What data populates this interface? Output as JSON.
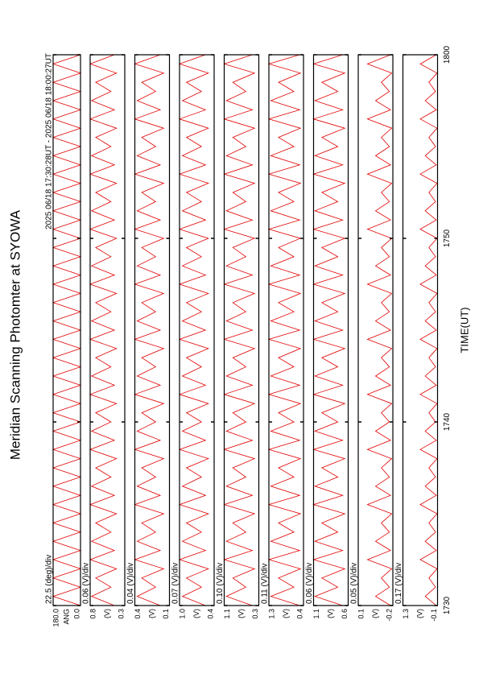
{
  "title": "Meridian Scanning Photomter at SYOWA",
  "subtitle": "2025 06/18 17:30:28UT - 2025 06/18 18:00:27UT",
  "chart_data": {
    "type": "line",
    "xlabel": "TIME(UT)",
    "xlim": [
      0,
      30
    ],
    "xticks": [
      {
        "value": 0,
        "label": "1730"
      },
      {
        "value": 10,
        "label": "1740"
      },
      {
        "value": 20,
        "label": "1750"
      },
      {
        "value": 30,
        "label": "1800"
      }
    ],
    "x": [
      0,
      0.5,
      1,
      1.5,
      2,
      2.5,
      3,
      3.5,
      4,
      4.5,
      5,
      5.5,
      6,
      6.5,
      7,
      7.5,
      8,
      8.5,
      9,
      9.5,
      10,
      10.5,
      11,
      11.5,
      12,
      12.5,
      13,
      13.5,
      14,
      14.5,
      15,
      15.5,
      16,
      16.5,
      17,
      17.5,
      18,
      18.5,
      19,
      19.5,
      20,
      20.5,
      21,
      21.5,
      22,
      22.5,
      23,
      23.5,
      24,
      24.5,
      25,
      25.5,
      26,
      26.5,
      27,
      27.5,
      28,
      28.5,
      29,
      29.5,
      30
    ],
    "series": [
      {
        "ylabel": "ANG",
        "scale_label": "22.5 (deg)/div",
        "color": "#e00000",
        "ylim": [
          0.0,
          180.0
        ],
        "yticks": [
          {
            "value": 180,
            "label": "180.0"
          },
          {
            "value": 0,
            "label": "0.0"
          }
        ],
        "values": [
          0,
          180,
          0,
          180,
          0,
          180,
          0,
          180,
          0,
          180,
          0,
          180,
          0,
          180,
          0,
          180,
          0,
          180,
          0,
          180,
          0,
          180,
          0,
          180,
          0,
          180,
          0,
          180,
          0,
          180,
          0,
          180,
          0,
          180,
          0,
          180,
          0,
          180,
          0,
          180,
          0,
          180,
          0,
          180,
          0,
          180,
          0,
          180,
          0,
          180,
          0,
          180,
          0,
          180,
          0,
          180,
          0,
          180,
          0,
          180,
          0
        ]
      },
      {
        "ylabel": "(V)",
        "scale_label": "0.06 (V)/div",
        "color": "#e00000",
        "ylim": [
          0.3,
          0.8
        ],
        "yticks": [
          0.8,
          0.3
        ],
        "values": [
          0.45,
          0.78,
          0.5,
          0.72,
          0.42,
          0.8,
          0.45,
          0.78,
          0.5,
          0.72,
          0.42,
          0.8,
          0.45,
          0.78,
          0.5,
          0.72,
          0.42,
          0.8,
          0.45,
          0.78,
          0.5,
          0.72,
          0.42,
          0.8,
          0.45,
          0.78,
          0.5,
          0.72,
          0.42,
          0.8,
          0.45,
          0.78,
          0.5,
          0.72,
          0.42,
          0.8,
          0.45,
          0.78,
          0.5,
          0.72,
          0.42,
          0.8,
          0.45,
          0.78,
          0.5,
          0.72,
          0.42,
          0.8,
          0.45,
          0.78,
          0.5,
          0.72,
          0.42,
          0.8,
          0.45,
          0.78,
          0.5,
          0.72,
          0.42,
          0.8,
          0.45
        ]
      },
      {
        "ylabel": "(V)",
        "scale_label": "0.04 (V)/div",
        "color": "#e00000",
        "ylim": [
          0.1,
          0.4
        ],
        "yticks": [
          0.4,
          0.1
        ],
        "values": [
          0.18,
          0.38,
          0.22,
          0.34,
          0.15,
          0.4,
          0.18,
          0.38,
          0.22,
          0.34,
          0.15,
          0.4,
          0.18,
          0.38,
          0.22,
          0.34,
          0.15,
          0.4,
          0.18,
          0.38,
          0.22,
          0.34,
          0.15,
          0.4,
          0.18,
          0.38,
          0.22,
          0.34,
          0.15,
          0.4,
          0.18,
          0.38,
          0.22,
          0.34,
          0.15,
          0.4,
          0.18,
          0.38,
          0.22,
          0.34,
          0.15,
          0.4,
          0.18,
          0.38,
          0.22,
          0.34,
          0.15,
          0.4,
          0.18,
          0.38,
          0.22,
          0.34,
          0.15,
          0.4,
          0.18,
          0.38,
          0.22,
          0.34,
          0.15,
          0.4,
          0.18
        ]
      },
      {
        "ylabel": "(V)",
        "scale_label": "0.07 (V)/div",
        "color": "#e00000",
        "ylim": [
          0.4,
          1.0
        ],
        "yticks": [
          {
            "value": 1,
            "label": "1.0"
          },
          0.4
        ],
        "values": [
          0.55,
          0.95,
          0.62,
          0.88,
          0.5,
          1.0,
          0.55,
          0.95,
          0.62,
          0.88,
          0.5,
          1.0,
          0.55,
          0.95,
          0.62,
          0.88,
          0.5,
          1.0,
          0.55,
          0.95,
          0.62,
          0.88,
          0.5,
          1.0,
          0.55,
          0.95,
          0.62,
          0.88,
          0.5,
          1.0,
          0.55,
          0.95,
          0.62,
          0.88,
          0.5,
          1.0,
          0.55,
          0.95,
          0.62,
          0.88,
          0.5,
          1.0,
          0.55,
          0.95,
          0.62,
          0.88,
          0.5,
          1.0,
          0.55,
          0.95,
          0.62,
          0.88,
          0.5,
          1.0,
          0.55,
          0.95,
          0.62,
          0.88,
          0.5,
          1.0,
          0.55
        ]
      },
      {
        "ylabel": "(V)",
        "scale_label": "0.10 (V)/div",
        "color": "#e00000",
        "ylim": [
          0.3,
          1.1
        ],
        "yticks": [
          1.1,
          0.3
        ],
        "values": [
          0.45,
          1.05,
          0.6,
          0.9,
          0.4,
          1.1,
          0.45,
          1.05,
          0.6,
          0.9,
          0.4,
          1.1,
          0.45,
          1.05,
          0.6,
          0.9,
          0.4,
          1.1,
          0.45,
          1.05,
          0.6,
          0.9,
          0.4,
          1.1,
          0.45,
          1.05,
          0.6,
          0.9,
          0.4,
          1.1,
          0.45,
          1.05,
          0.6,
          0.9,
          0.4,
          1.1,
          0.45,
          1.05,
          0.6,
          0.9,
          0.4,
          1.1,
          0.45,
          1.05,
          0.6,
          0.9,
          0.4,
          1.1,
          0.45,
          1.05,
          0.6,
          0.9,
          0.4,
          1.1,
          0.45,
          1.05,
          0.6,
          0.9,
          0.4,
          1.1,
          0.45
        ]
      },
      {
        "ylabel": "(V)",
        "scale_label": "0.11 (V)/div",
        "color": "#e00000",
        "ylim": [
          0.4,
          1.3
        ],
        "yticks": [
          1.3,
          0.4
        ],
        "values": [
          0.5,
          1.25,
          0.65,
          1.05,
          0.48,
          1.3,
          0.5,
          1.25,
          0.65,
          1.05,
          0.48,
          1.3,
          0.5,
          1.25,
          0.65,
          1.05,
          0.48,
          1.3,
          0.5,
          1.25,
          0.65,
          1.05,
          0.48,
          1.3,
          0.5,
          1.25,
          0.65,
          1.05,
          0.48,
          1.3,
          0.5,
          1.25,
          0.65,
          1.05,
          0.48,
          1.3,
          0.5,
          1.25,
          0.65,
          1.05,
          0.48,
          1.3,
          0.5,
          1.25,
          0.65,
          1.05,
          0.48,
          1.3,
          0.5,
          1.25,
          0.65,
          1.05,
          0.48,
          1.3,
          0.5,
          1.25,
          0.65,
          1.05,
          0.48,
          1.3,
          0.5
        ]
      },
      {
        "ylabel": "(V)",
        "scale_label": "0.06 (V)/div",
        "color": "#e00000",
        "ylim": [
          0.6,
          1.1
        ],
        "yticks": [
          1.1,
          0.6
        ],
        "values": [
          0.68,
          1.08,
          0.75,
          0.98,
          0.65,
          1.1,
          0.68,
          1.08,
          0.75,
          0.98,
          0.65,
          1.1,
          0.68,
          1.08,
          0.75,
          0.98,
          0.65,
          1.1,
          0.68,
          1.08,
          0.75,
          0.98,
          0.65,
          1.1,
          0.68,
          1.08,
          0.75,
          0.98,
          0.65,
          1.1,
          0.68,
          1.08,
          0.75,
          0.98,
          0.65,
          1.1,
          0.68,
          1.08,
          0.75,
          0.98,
          0.65,
          1.1,
          0.68,
          1.08,
          0.75,
          0.98,
          0.65,
          1.1,
          0.68,
          1.08,
          0.75,
          0.98,
          0.65,
          1.1,
          0.68,
          1.08,
          0.75,
          0.98,
          0.65,
          1.1,
          0.68
        ]
      },
      {
        "ylabel": "(V)",
        "scale_label": "0.05 (V)/div",
        "color": "#e00000",
        "ylim": [
          -0.2,
          0.1
        ],
        "yticks": [
          0.1,
          -0.2
        ],
        "values": [
          -0.18,
          -0.05,
          -0.17,
          -0.1,
          -0.19,
          0.02,
          -0.18,
          -0.05,
          -0.17,
          -0.1,
          -0.19,
          0.02,
          -0.18,
          -0.05,
          -0.17,
          -0.1,
          -0.19,
          0.02,
          -0.18,
          -0.05,
          -0.17,
          -0.1,
          -0.19,
          0.02,
          -0.18,
          -0.05,
          -0.17,
          -0.1,
          -0.19,
          0.02,
          -0.18,
          -0.05,
          -0.17,
          -0.1,
          -0.19,
          0.02,
          -0.18,
          -0.05,
          -0.17,
          -0.1,
          -0.19,
          0.02,
          -0.18,
          -0.05,
          -0.17,
          -0.1,
          -0.19,
          0.02,
          -0.18,
          -0.05,
          -0.17,
          -0.1,
          -0.19,
          0.02,
          -0.18,
          -0.05,
          -0.17,
          -0.1,
          -0.19,
          0.02,
          -0.18
        ]
      },
      {
        "ylabel": "(V)",
        "scale_label": "0.17 (V)/div",
        "color": "#e00000",
        "ylim": [
          -0.1,
          1.3
        ],
        "yticks": [
          1.3,
          -0.1
        ],
        "values": [
          -0.05,
          0.4,
          -0.02,
          0.25,
          -0.08,
          0.6,
          -0.05,
          0.4,
          -0.02,
          0.25,
          -0.08,
          0.6,
          -0.05,
          0.4,
          -0.02,
          0.25,
          -0.08,
          0.6,
          -0.05,
          0.4,
          -0.02,
          0.25,
          -0.08,
          0.6,
          -0.05,
          0.4,
          -0.02,
          0.25,
          -0.08,
          0.6,
          -0.05,
          0.4,
          -0.02,
          0.25,
          -0.08,
          0.6,
          -0.05,
          0.4,
          -0.02,
          0.25,
          -0.08,
          0.6,
          -0.05,
          0.4,
          -0.02,
          0.25,
          -0.08,
          0.6,
          -0.05,
          0.4,
          -0.02,
          0.25,
          -0.08,
          0.6,
          -0.05,
          0.4,
          -0.02,
          0.25,
          -0.08,
          0.6,
          -0.05
        ]
      }
    ]
  }
}
